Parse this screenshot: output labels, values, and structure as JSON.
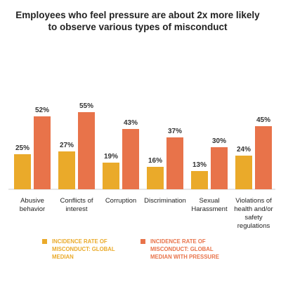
{
  "chart_data": {
    "type": "bar",
    "title": [
      "Employees who feel pressure are about 2x more likely",
      "to observe various types of misconduct"
    ],
    "categories": [
      [
        "Abusive",
        "behavior"
      ],
      [
        "Conflicts of",
        "interest"
      ],
      [
        "Corruption"
      ],
      [
        "Discrimination"
      ],
      [
        "Sexual",
        "Harassment"
      ],
      [
        "Violations of",
        "health and/or",
        "safety",
        "regulations"
      ]
    ],
    "series": [
      {
        "name": [
          "INCIDENCE RATE OF",
          "MISCONDUCT: GLOBAL",
          "MEDIAN"
        ],
        "color": "#EAAA2A",
        "values": [
          25,
          27,
          19,
          16,
          13,
          24
        ],
        "labels": [
          "25%",
          "27%",
          "19%",
          "16%",
          "13%",
          "24%"
        ]
      },
      {
        "name": [
          "INCIDENCE RATE OF",
          "MISCONDUCT: GLOBAL",
          "MEDIAN WITH PRESSURE"
        ],
        "color": "#E8734A",
        "values": [
          52,
          55,
          43,
          37,
          30,
          45
        ],
        "labels": [
          "52%",
          "55%",
          "43%",
          "37%",
          "30%",
          "45%"
        ]
      }
    ],
    "ylim": [
      0,
      100
    ],
    "grid": false,
    "legend": "bottom",
    "xlabel": "",
    "ylabel": ""
  }
}
